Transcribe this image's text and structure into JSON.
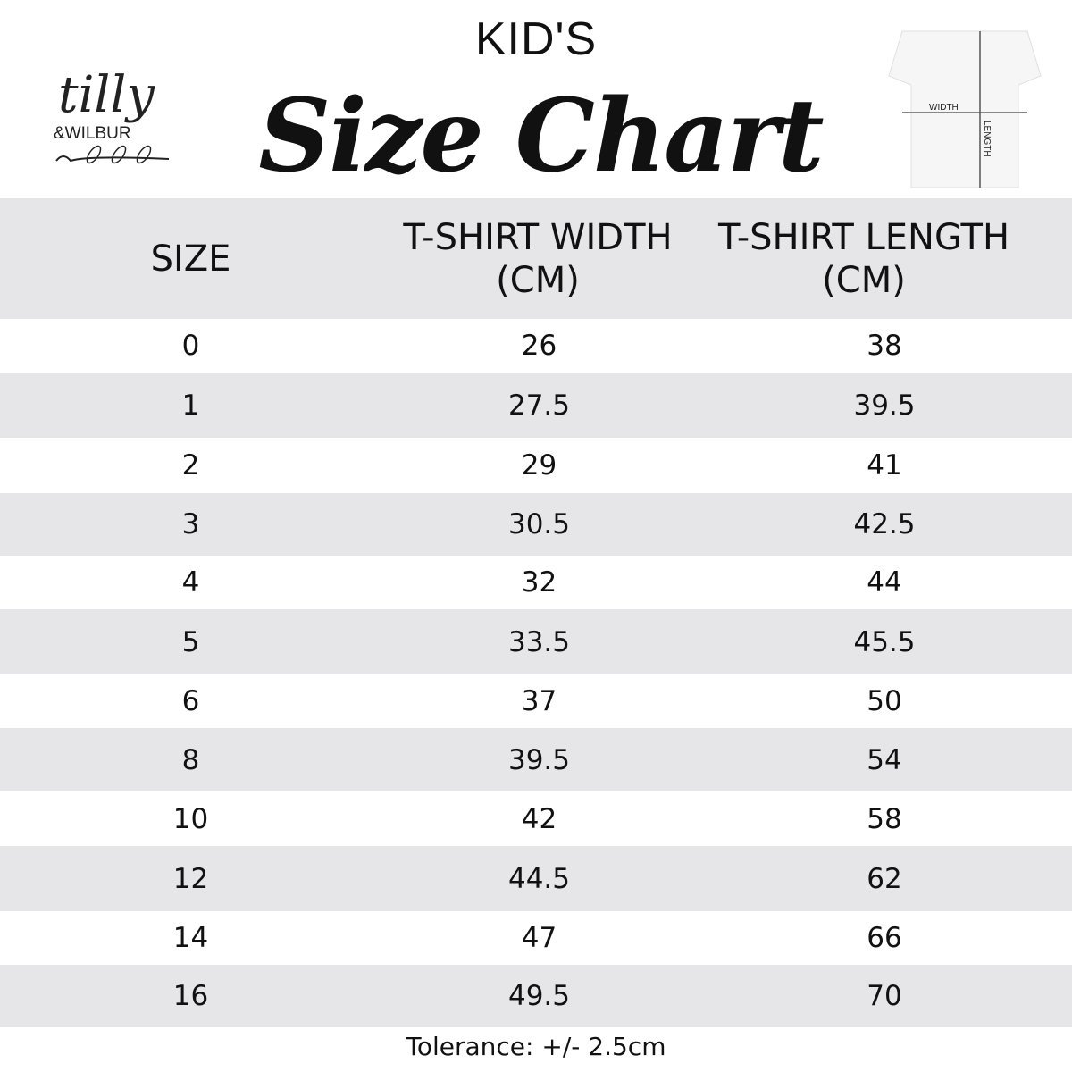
{
  "header": {
    "kicker": "KID'S",
    "title": "Size Chart"
  },
  "logo": {
    "line1": "tilly",
    "line2": "&WILBUR"
  },
  "diagram": {
    "width_label": "WIDTH",
    "length_label": "LENGTH"
  },
  "table": {
    "columns": [
      "SIZE",
      "T-SHIRT WIDTH (CM)",
      "T-SHIRT LENGTH (CM)"
    ],
    "rows": [
      [
        "0",
        "26",
        "38"
      ],
      [
        "1",
        "27.5",
        "39.5"
      ],
      [
        "2",
        "29",
        "41"
      ],
      [
        "3",
        "30.5",
        "42.5"
      ],
      [
        "4",
        "32",
        "44"
      ],
      [
        "5",
        "33.5",
        "45.5"
      ],
      [
        "6",
        "37",
        "50"
      ],
      [
        "8",
        "39.5",
        "54"
      ],
      [
        "10",
        "42",
        "58"
      ],
      [
        "12",
        "44.5",
        "62"
      ],
      [
        "14",
        "47",
        "66"
      ],
      [
        "16",
        "49.5",
        "70"
      ]
    ]
  },
  "footer": {
    "tolerance": "Tolerance: +/- 2.5cm"
  },
  "colors": {
    "stripe": "#e6e6e8",
    "text": "#111111"
  }
}
